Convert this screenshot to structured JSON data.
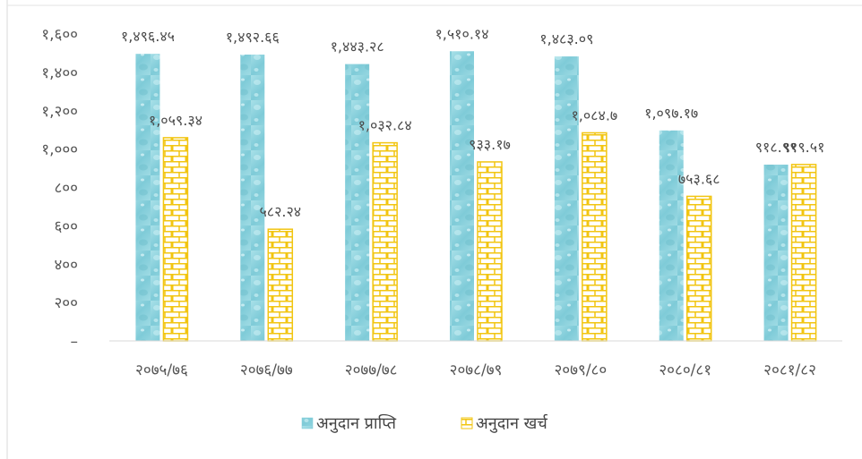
{
  "chart_data": {
    "type": "bar",
    "title": "",
    "xlabel": "",
    "ylabel": "",
    "ylim": [
      0,
      1600
    ],
    "yticks": [
      0,
      200,
      400,
      600,
      800,
      1000,
      1200,
      1400,
      1600
    ],
    "ytick_labels": [
      "–",
      "२००",
      "४००",
      "६००",
      "८००",
      "१,०००",
      "१,२००",
      "१,४००",
      "१,६००"
    ],
    "categories": [
      "२०७५/७६",
      "२०७६/७७",
      "२०७७/७८",
      "२०७८/७९",
      "२०७९/८०",
      "२०८०/८१",
      "२०८१/८२"
    ],
    "grid": false,
    "legend_position": "bottom",
    "series": [
      {
        "name": "अनुदान प्राप्ति",
        "color": "#8fd3de",
        "pattern": "water-droplets",
        "values": [
          1496.45,
          1492.66,
          1443.28,
          1510.14,
          1483.09,
          1097.17,
          919
        ],
        "labels": [
          "१,४९६.४५",
          "१,४९२.६६",
          "१,४४३.२८",
          "१,५१०.१४",
          "१,४८३.०९",
          "१,०९७.१७",
          "९१८.९९"
        ]
      },
      {
        "name": "अनुदान खर्च",
        "color": "#f2c511",
        "pattern": "brick",
        "values": [
          1059.34,
          582.24,
          1032.84,
          933.17,
          1084.7,
          753.68,
          919.51
        ],
        "labels": [
          "१,०५९.३४",
          "५८२.२४",
          "१,०३२.८४",
          "९३३.१७",
          "१,०८४.७",
          "७५३.६८",
          "९१९.५१"
        ]
      }
    ]
  }
}
